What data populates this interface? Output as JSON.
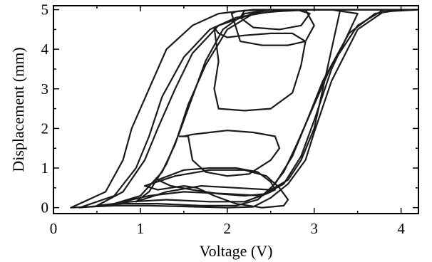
{
  "chart_data": {
    "type": "line",
    "xlabel": "Voltage (V)",
    "ylabel": "Displacement (mm)",
    "xlim": [
      0,
      4.2
    ],
    "ylim": [
      -0.15,
      5.1
    ],
    "xticks": [
      0,
      1,
      2,
      3,
      4
    ],
    "yticks": [
      0,
      1,
      2,
      3,
      4,
      5
    ],
    "xtick_labels": [
      "0",
      "1",
      "2",
      "3",
      "4"
    ],
    "ytick_labels": [
      "0",
      "1",
      "2",
      "3",
      "4",
      "5"
    ],
    "grid": false,
    "line_color": "#1a1a1a",
    "series": [
      {
        "x": [
          0.2,
          0.7,
          1.1,
          1.5,
          2.0,
          2.3,
          2.5,
          2.7,
          2.9,
          3.0,
          3.2,
          3.5,
          3.8,
          4.2,
          3.8,
          3.2,
          2.7,
          2.2,
          1.9,
          1.6,
          1.3,
          1.1,
          0.9,
          0.8,
          0.6,
          0.2
        ],
        "y": [
          0.0,
          0.05,
          0.05,
          0.03,
          0.0,
          0.02,
          0.25,
          0.6,
          1.2,
          1.9,
          3.2,
          4.5,
          4.95,
          5.0,
          5.0,
          5.0,
          5.0,
          4.98,
          4.9,
          4.6,
          4.0,
          3.0,
          2.0,
          1.2,
          0.4,
          0.0
        ]
      },
      {
        "x": [
          0.3,
          0.8,
          1.2,
          1.7,
          2.1,
          2.35,
          2.55,
          2.75,
          2.9,
          3.1,
          3.4,
          3.7,
          4.0,
          3.6,
          3.0,
          2.5,
          2.1,
          1.8,
          1.5,
          1.25,
          1.1,
          0.95,
          0.7,
          0.3
        ],
        "y": [
          0.0,
          0.1,
          0.1,
          0.05,
          0.05,
          0.2,
          0.6,
          1.3,
          2.1,
          3.2,
          4.4,
          4.9,
          5.0,
          5.0,
          5.0,
          4.95,
          4.8,
          4.5,
          3.8,
          2.8,
          1.8,
          1.0,
          0.3,
          0.0
        ]
      },
      {
        "x": [
          0.5,
          0.9,
          1.3,
          1.8,
          2.2,
          2.45,
          2.65,
          2.8,
          3.0,
          3.2,
          3.5,
          3.8,
          3.4,
          2.8,
          2.3,
          1.9,
          1.6,
          1.4,
          1.2,
          1.05,
          0.8,
          0.5
        ],
        "y": [
          0.05,
          0.15,
          0.2,
          0.15,
          0.15,
          0.35,
          0.9,
          1.6,
          2.6,
          3.6,
          4.6,
          5.0,
          5.0,
          5.0,
          4.9,
          4.6,
          3.9,
          3.0,
          2.0,
          1.2,
          0.4,
          0.05
        ]
      },
      {
        "x": [
          0.7,
          1.1,
          1.5,
          2.0,
          2.4,
          2.65,
          2.85,
          3.0,
          3.2,
          3.5,
          3.2,
          2.7,
          2.3,
          2.0,
          1.75,
          1.55,
          1.4,
          1.25,
          1.0,
          0.7
        ],
        "y": [
          0.1,
          0.3,
          0.4,
          0.35,
          0.3,
          0.6,
          1.3,
          2.2,
          3.5,
          4.9,
          5.0,
          5.0,
          4.9,
          4.5,
          3.6,
          2.6,
          1.6,
          0.9,
          0.3,
          0.1
        ]
      },
      {
        "x": [
          0.95,
          1.3,
          1.7,
          2.1,
          2.5,
          2.7,
          2.85,
          3.0,
          3.1,
          3.2,
          3.3,
          2.9,
          2.5,
          2.2,
          1.95,
          1.75,
          1.6,
          1.45,
          1.3,
          1.1,
          0.95
        ],
        "y": [
          0.15,
          0.4,
          0.55,
          0.5,
          0.45,
          0.7,
          1.2,
          2.0,
          3.0,
          4.0,
          5.0,
          5.0,
          5.0,
          4.9,
          4.5,
          3.7,
          2.8,
          1.9,
          1.1,
          0.4,
          0.15
        ]
      },
      {
        "x": [
          1.05,
          1.4,
          1.8,
          2.2,
          2.45,
          2.6,
          2.7,
          2.65,
          2.4,
          2.1,
          1.85,
          1.65,
          1.5,
          1.35,
          1.2,
          1.05
        ],
        "y": [
          0.55,
          0.8,
          0.95,
          0.95,
          0.8,
          0.5,
          0.2,
          0.05,
          0.0,
          0.1,
          0.3,
          0.5,
          0.55,
          0.5,
          0.45,
          0.55
        ]
      },
      {
        "x": [
          1.2,
          1.5,
          1.8,
          2.1,
          2.35,
          2.5,
          2.55,
          2.45,
          2.2,
          1.9,
          1.6,
          1.35,
          1.2
        ],
        "y": [
          0.7,
          0.95,
          1.0,
          1.0,
          0.9,
          0.65,
          0.45,
          0.35,
          0.3,
          0.35,
          0.45,
          0.55,
          0.7
        ]
      },
      {
        "x": [
          1.55,
          1.6,
          1.75,
          2.0,
          2.25,
          2.5,
          2.6,
          2.55,
          2.3,
          2.0,
          1.8,
          1.6,
          1.5,
          1.45,
          1.55
        ],
        "y": [
          1.8,
          1.2,
          0.9,
          0.8,
          0.85,
          1.2,
          1.5,
          1.8,
          1.9,
          1.95,
          1.9,
          1.85,
          1.8,
          1.8,
          1.8
        ]
      },
      {
        "x": [
          1.85,
          1.9,
          1.85,
          1.9,
          2.2,
          2.5,
          2.75,
          2.85,
          2.9,
          2.75,
          2.5,
          2.2,
          2.0,
          1.9,
          1.85
        ],
        "y": [
          4.55,
          3.7,
          3.0,
          2.5,
          2.45,
          2.5,
          2.9,
          3.6,
          4.2,
          4.4,
          4.4,
          4.35,
          4.3,
          4.4,
          4.55
        ]
      },
      {
        "x": [
          2.05,
          2.15,
          2.4,
          2.7,
          2.9,
          3.0,
          2.9,
          2.6,
          2.3,
          2.1,
          2.05
        ],
        "y": [
          4.9,
          4.2,
          4.1,
          4.1,
          4.2,
          4.6,
          5.0,
          5.0,
          5.0,
          4.95,
          4.9
        ]
      },
      {
        "x": [
          2.15,
          2.3,
          2.6,
          2.85,
          2.95,
          2.8,
          2.5,
          2.2,
          2.15
        ],
        "y": [
          4.8,
          4.55,
          4.5,
          4.6,
          4.9,
          5.0,
          5.0,
          4.98,
          4.8
        ]
      }
    ]
  }
}
